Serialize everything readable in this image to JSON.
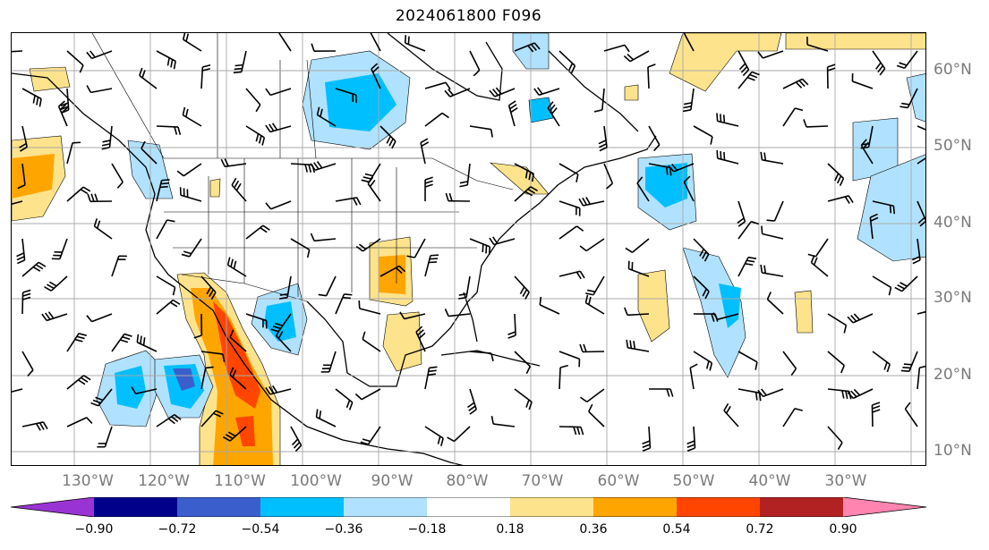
{
  "title": "2024061800 F096",
  "lon_labels": [
    "130°W",
    "120°W",
    "110°W",
    "100°W",
    "90°W",
    "80°W",
    "70°W",
    "60°W",
    "50°W",
    "40°W",
    "30°W"
  ],
  "lat_labels": [
    "60°N",
    "50°N",
    "40°N",
    "30°N",
    "20°N",
    "10°N"
  ],
  "colorbar": {
    "ticks": [
      "−0.90",
      "−0.72",
      "−0.54",
      "−0.36",
      "−0.18",
      "0.18",
      "0.36",
      "0.54",
      "0.72",
      "0.90"
    ],
    "colors": [
      "#9a33d4",
      "#00008b",
      "#3a5fcd",
      "#00bfff",
      "#b0e2ff",
      "#ffffff",
      "#fde38c",
      "#ffa500",
      "#ff4500",
      "#b22222",
      "#ff85b0"
    ]
  },
  "palette": {
    "light_blue": "#b0e2ff",
    "mid_blue": "#00bfff",
    "dark_blue": "#3a5fcd",
    "light_yellow": "#fde38c",
    "orange": "#ffa500",
    "red_orange": "#ff4500",
    "grid": "#a9a9a9"
  }
}
